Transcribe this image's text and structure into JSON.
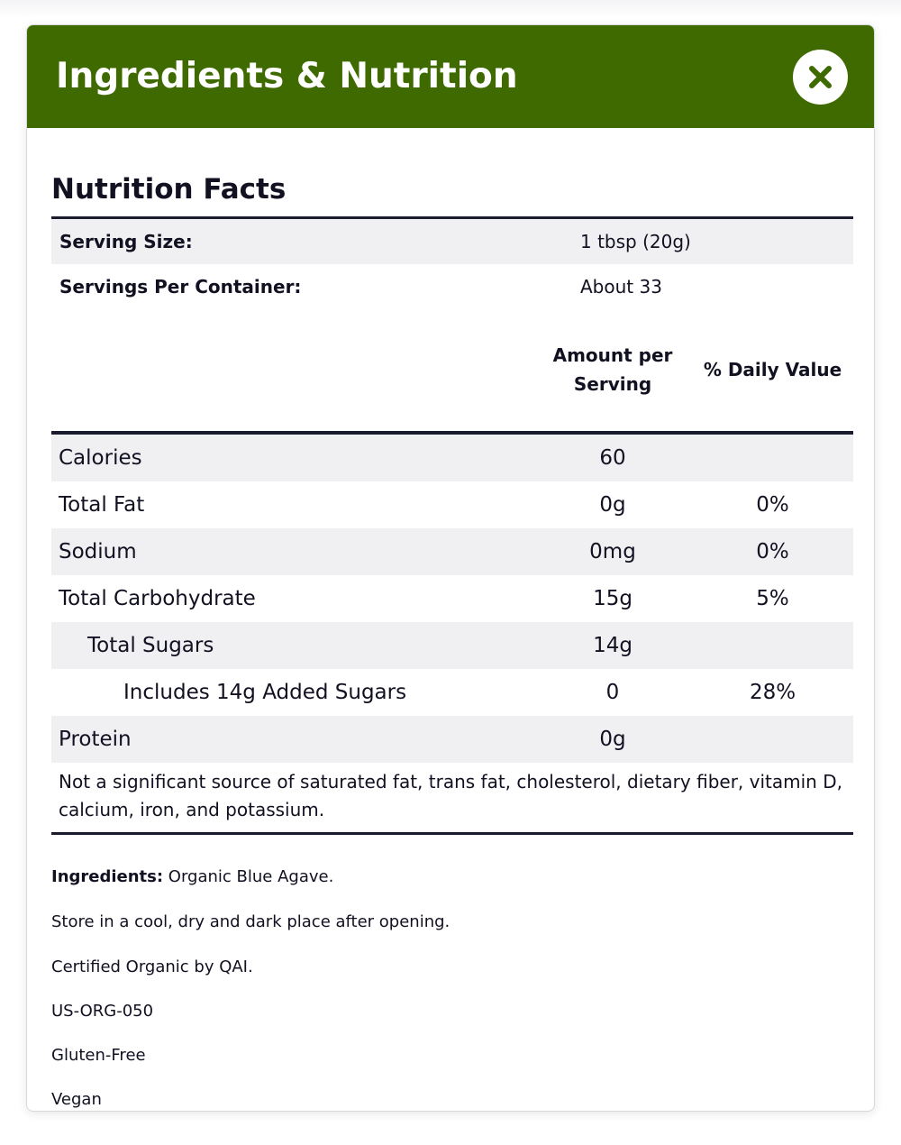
{
  "modal": {
    "title": "Ingredients & Nutrition",
    "close_icon": "close-icon"
  },
  "nutrition": {
    "title": "Nutrition Facts",
    "serving_size": {
      "label": "Serving Size:",
      "value": "1 tbsp (20g)"
    },
    "servings_per_container": {
      "label": "Servings Per Container:",
      "value": "About 33"
    },
    "columns": {
      "amount": "Amount per Serving",
      "daily": "% Daily Value"
    },
    "rows": [
      {
        "label": "Calories",
        "amount": "60",
        "daily": ""
      },
      {
        "label": "Total Fat",
        "amount": "0g",
        "daily": "0%"
      },
      {
        "label": "Sodium",
        "amount": "0mg",
        "daily": "0%"
      },
      {
        "label": "Total Carbohydrate",
        "amount": "15g",
        "daily": "5%"
      },
      {
        "label": "Total Sugars",
        "amount": "14g",
        "daily": ""
      },
      {
        "label": "Includes 14g Added Sugars",
        "amount": "0",
        "daily": "28%"
      },
      {
        "label": "Protein",
        "amount": "0g",
        "daily": ""
      }
    ],
    "footnote": "Not a significant source of saturated fat, trans fat, cholesterol, dietary fiber, vitamin D, calcium, iron, and potassium."
  },
  "info": {
    "ingredients_label": "Ingredients:",
    "ingredients_value": " Organic Blue Agave.",
    "storage": "Store in a cool, dry and dark place after opening.",
    "certified": "Certified Organic by QAI.",
    "cert_code": "US-ORG-050",
    "gluten": "Gluten-Free",
    "vegan": "Vegan"
  },
  "colors": {
    "header_bg": "#3f6a00",
    "header_text": "#ffffff",
    "rule": "#1b1b2e",
    "row_shade": "#f0f0f3"
  }
}
